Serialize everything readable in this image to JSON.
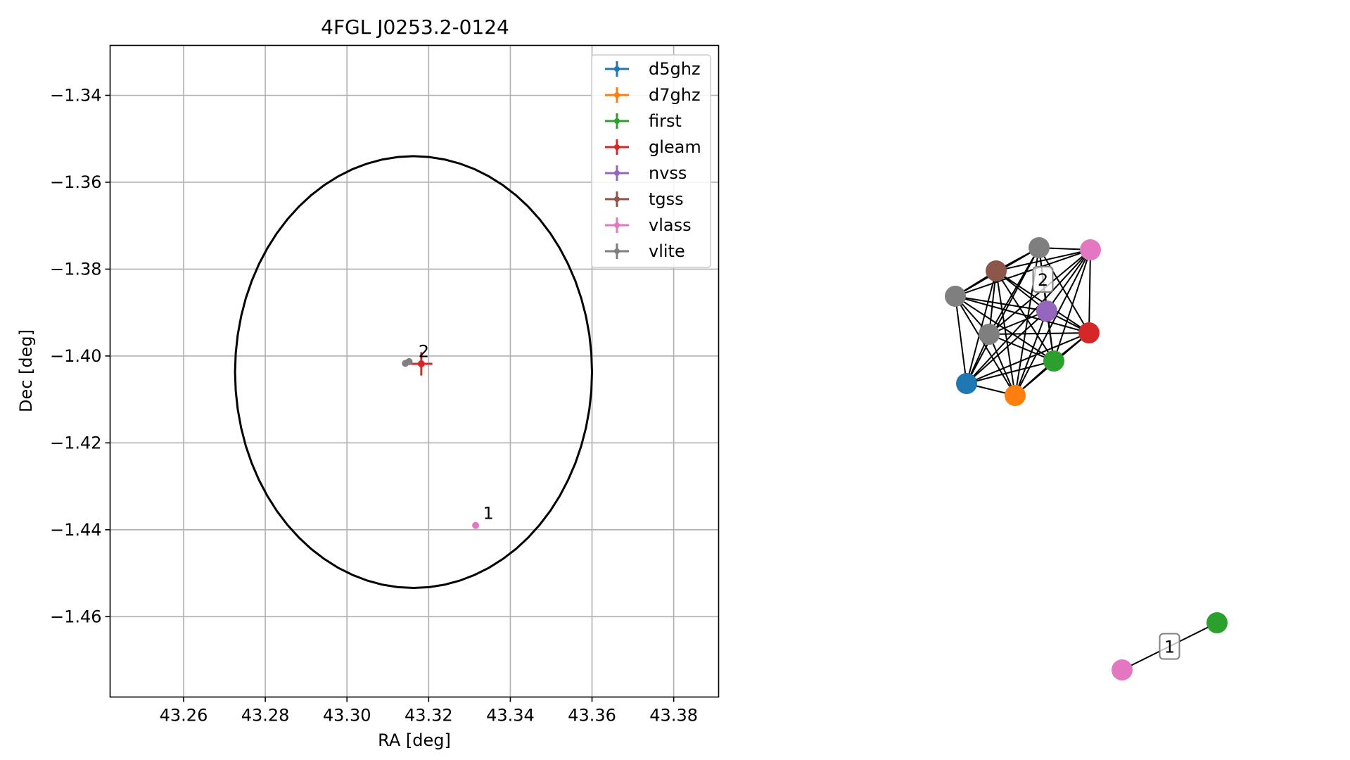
{
  "chart_data": [
    {
      "type": "scatter",
      "title": "4FGL J0253.2-0124",
      "xlabel": "RA [deg]",
      "ylabel": "Dec [deg]",
      "xlim": [
        43.242,
        43.391
      ],
      "ylim": [
        -1.4785,
        -1.3285
      ],
      "xticks": [
        43.26,
        43.28,
        43.3,
        43.32,
        43.34,
        43.36,
        43.38
      ],
      "xtick_labels": [
        "43.26",
        "43.28",
        "43.30",
        "43.32",
        "43.34",
        "43.36",
        "43.38"
      ],
      "yticks": [
        -1.34,
        -1.36,
        -1.38,
        -1.4,
        -1.42,
        -1.44,
        -1.46
      ],
      "ytick_labels": [
        "−1.34",
        "−1.36",
        "−1.38",
        "−1.40",
        "−1.42",
        "−1.44",
        "−1.46"
      ],
      "grid": true,
      "legend_position": "top-right",
      "series": [
        {
          "name": "d5ghz",
          "color": "#1f77b4",
          "points": []
        },
        {
          "name": "d7ghz",
          "color": "#ff7f0e",
          "points": []
        },
        {
          "name": "first",
          "color": "#2ca02c",
          "points": []
        },
        {
          "name": "gleam",
          "color": "#d62728",
          "points": [
            {
              "x": 43.3182,
              "y": -1.4018,
              "xerr": 0.0027,
              "yerr": 0.0027
            }
          ]
        },
        {
          "name": "nvss",
          "color": "#9467bd",
          "points": []
        },
        {
          "name": "tgss",
          "color": "#8c564b",
          "points": []
        },
        {
          "name": "vlass",
          "color": "#e377c2",
          "points": [
            {
              "x": 43.3315,
              "y": -1.439,
              "xerr": 0,
              "yerr": 0
            }
          ]
        },
        {
          "name": "vlite",
          "color": "#7f7f7f",
          "points": [
            {
              "x": 43.3143,
              "y": -1.4017,
              "xerr": 0,
              "yerr": 0
            },
            {
              "x": 43.3152,
              "y": -1.4013,
              "xerr": 0,
              "yerr": 0
            }
          ]
        }
      ],
      "ellipse": {
        "center_x": 43.3163,
        "center_y": -1.4037,
        "radius_x": 0.0437,
        "radius_y": 0.0497,
        "color": "#000000"
      },
      "annotations": [
        {
          "text": "2",
          "x": 43.3175,
          "y": -1.4003
        },
        {
          "text": "1",
          "x": 43.3333,
          "y": -1.4375
        }
      ]
    },
    {
      "type": "network",
      "nodes": [
        {
          "id": "A",
          "color": "#1f77b4"
        },
        {
          "id": "B",
          "color": "#ff7f0e"
        },
        {
          "id": "C",
          "color": "#2ca02c"
        },
        {
          "id": "D",
          "color": "#d62728"
        },
        {
          "id": "E",
          "color": "#9467bd"
        },
        {
          "id": "F",
          "color": "#8c564b"
        },
        {
          "id": "G",
          "color": "#e377c2"
        },
        {
          "id": "H",
          "color": "#7f7f7f"
        },
        {
          "id": "I",
          "color": "#7f7f7f"
        },
        {
          "id": "J",
          "color": "#7f7f7f"
        },
        {
          "id": "K",
          "color": "#2ca02c"
        },
        {
          "id": "L",
          "color": "#e377c2"
        }
      ],
      "edges": [
        [
          "A",
          "B"
        ],
        [
          "A",
          "C"
        ],
        [
          "A",
          "D"
        ],
        [
          "A",
          "E"
        ],
        [
          "A",
          "F"
        ],
        [
          "A",
          "G"
        ],
        [
          "A",
          "H"
        ],
        [
          "A",
          "I"
        ],
        [
          "A",
          "J"
        ],
        [
          "B",
          "C"
        ],
        [
          "B",
          "D"
        ],
        [
          "B",
          "E"
        ],
        [
          "B",
          "F"
        ],
        [
          "B",
          "G"
        ],
        [
          "B",
          "H"
        ],
        [
          "B",
          "I"
        ],
        [
          "B",
          "J"
        ],
        [
          "C",
          "D"
        ],
        [
          "C",
          "E"
        ],
        [
          "C",
          "F"
        ],
        [
          "C",
          "G"
        ],
        [
          "C",
          "H"
        ],
        [
          "C",
          "I"
        ],
        [
          "C",
          "J"
        ],
        [
          "D",
          "E"
        ],
        [
          "D",
          "F"
        ],
        [
          "D",
          "G"
        ],
        [
          "D",
          "H"
        ],
        [
          "D",
          "I"
        ],
        [
          "D",
          "J"
        ],
        [
          "E",
          "F"
        ],
        [
          "E",
          "G"
        ],
        [
          "E",
          "H"
        ],
        [
          "E",
          "I"
        ],
        [
          "E",
          "J"
        ],
        [
          "F",
          "G"
        ],
        [
          "F",
          "H"
        ],
        [
          "F",
          "I"
        ],
        [
          "F",
          "J"
        ],
        [
          "G",
          "H"
        ],
        [
          "G",
          "I"
        ],
        [
          "G",
          "J"
        ],
        [
          "H",
          "I"
        ],
        [
          "H",
          "J"
        ],
        [
          "I",
          "J"
        ],
        [
          "K",
          "L"
        ]
      ],
      "edge_labels": [
        {
          "text": "2",
          "between": [
            "E",
            "H"
          ]
        },
        {
          "text": "1",
          "between": [
            "K",
            "L"
          ]
        }
      ]
    }
  ]
}
